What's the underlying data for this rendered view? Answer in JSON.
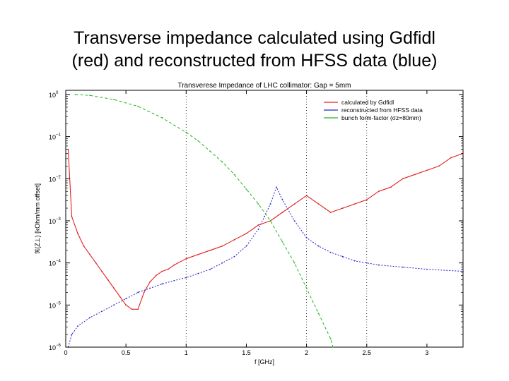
{
  "slide": {
    "title_line1": "Transverse impedance calculated using Gdfidl",
    "title_line2": "(red) and reconstructed from HFSS data (blue)"
  },
  "chart_data": {
    "type": "line",
    "title": "Transverese Impedance of LHC collimator: Gap = 5mm",
    "xlabel": "f [GHz]",
    "ylabel": "ℜ(Z⊥) [kOhm/mm offset]",
    "xlim": [
      0,
      3.3
    ],
    "ylim_log10": [
      -6,
      0.1
    ],
    "yscale": "log",
    "x_ticks": [
      0,
      0.5,
      1,
      1.5,
      2,
      2.5,
      3
    ],
    "x_tick_labels": [
      "0",
      "0.5",
      "1",
      "1.5",
      "2",
      "2.5",
      "3"
    ],
    "y_ticks_log10": [
      0,
      -1,
      -2,
      -3,
      -4,
      -5,
      -6
    ],
    "y_tick_mantissa": "10",
    "y_tick_exponents": [
      "0",
      "−1",
      "−2",
      "−3",
      "−4",
      "−5",
      "−6"
    ],
    "vertical_gridlines_x": [
      1,
      2,
      2.5
    ],
    "legend": {
      "placement": "top-right",
      "entries": [
        {
          "label": "calculated by Gdfidl",
          "color": "#e0201c"
        },
        {
          "label": "reconstructed from HFSS data",
          "color": "#2424c8"
        },
        {
          "label": "bunch form-factor (σz=80mm)",
          "color": "#22b422"
        }
      ]
    },
    "series": [
      {
        "name": "calculated by Gdfidl",
        "color": "#e0201c",
        "x": [
          0.02,
          0.05,
          0.1,
          0.15,
          0.2,
          0.25,
          0.3,
          0.35,
          0.4,
          0.45,
          0.5,
          0.55,
          0.6,
          0.65,
          0.7,
          0.75,
          0.8,
          0.85,
          0.9,
          1.0,
          1.1,
          1.2,
          1.3,
          1.4,
          1.5,
          1.6,
          1.7,
          1.8,
          1.9,
          2.0,
          2.1,
          2.2,
          2.3,
          2.4,
          2.5,
          2.6,
          2.7,
          2.8,
          2.9,
          3.0,
          3.1,
          3.2,
          3.3
        ],
        "y_log10": [
          -1.3,
          -2.9,
          -3.3,
          -3.6,
          -3.8,
          -4.0,
          -4.2,
          -4.4,
          -4.6,
          -4.8,
          -5.0,
          -5.1,
          -5.1,
          -4.7,
          -4.45,
          -4.3,
          -4.2,
          -4.15,
          -4.05,
          -3.9,
          -3.8,
          -3.7,
          -3.6,
          -3.45,
          -3.3,
          -3.1,
          -3.0,
          -2.8,
          -2.6,
          -2.4,
          -2.6,
          -2.8,
          -2.7,
          -2.6,
          -2.5,
          -2.3,
          -2.2,
          -2.0,
          -1.9,
          -1.8,
          -1.7,
          -1.5,
          -1.4
        ]
      },
      {
        "name": "reconstructed from HFSS data",
        "color": "#2424c8",
        "x": [
          0.02,
          0.05,
          0.1,
          0.2,
          0.3,
          0.4,
          0.5,
          0.6,
          0.7,
          0.8,
          0.9,
          1.0,
          1.1,
          1.2,
          1.3,
          1.4,
          1.5,
          1.6,
          1.65,
          1.7,
          1.75,
          1.8,
          1.9,
          2.0,
          2.1,
          2.2,
          2.3,
          2.4,
          2.5,
          2.6,
          2.8,
          3.0,
          3.3
        ],
        "y_log10": [
          -6.0,
          -5.7,
          -5.5,
          -5.3,
          -5.15,
          -5.0,
          -4.85,
          -4.7,
          -4.6,
          -4.5,
          -4.42,
          -4.35,
          -4.25,
          -4.15,
          -4.0,
          -3.85,
          -3.6,
          -3.2,
          -2.9,
          -2.6,
          -2.2,
          -2.5,
          -3.0,
          -3.4,
          -3.6,
          -3.75,
          -3.85,
          -3.95,
          -4.0,
          -4.05,
          -4.1,
          -4.15,
          -4.2
        ]
      },
      {
        "name": "bunch form-factor (σz=80mm)",
        "color": "#22b422",
        "x": [
          0.08,
          0.2,
          0.4,
          0.6,
          0.8,
          1.0,
          1.1,
          1.2,
          1.3,
          1.4,
          1.5,
          1.6,
          1.7,
          1.8,
          1.9,
          2.0,
          2.1,
          2.2,
          2.22
        ],
        "y_log10": [
          0.0,
          -0.02,
          -0.12,
          -0.28,
          -0.55,
          -0.9,
          -1.1,
          -1.35,
          -1.6,
          -1.9,
          -2.25,
          -2.6,
          -3.0,
          -3.5,
          -4.0,
          -4.6,
          -5.2,
          -5.8,
          -6.0
        ]
      }
    ]
  }
}
